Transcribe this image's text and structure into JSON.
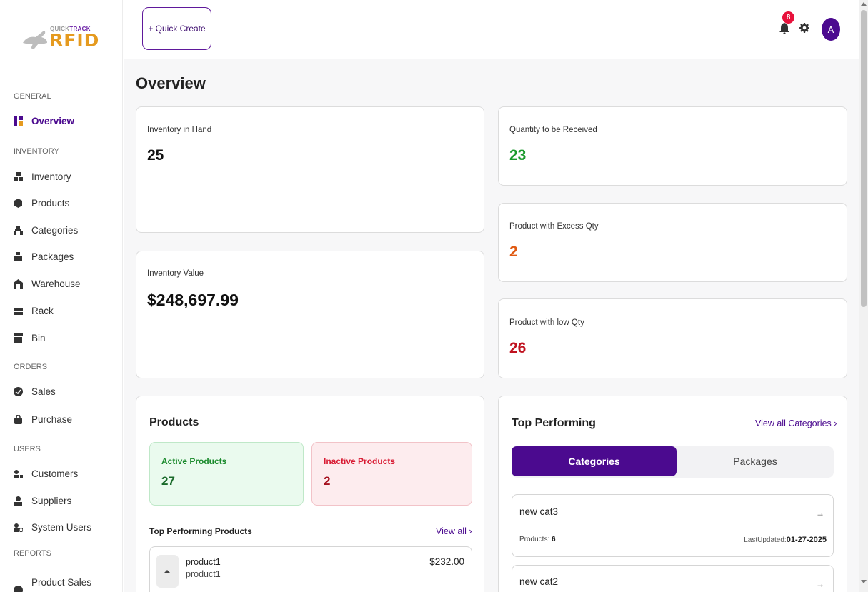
{
  "brand": {
    "small": "QUICK",
    "small_bold": "TRACK",
    "big": "RFID"
  },
  "sidebar": {
    "sections": [
      {
        "label": "GENERAL"
      },
      {
        "label": "INVENTORY"
      },
      {
        "label": "ORDERS"
      },
      {
        "label": "USERS"
      },
      {
        "label": "REPORTS"
      }
    ],
    "items": [
      {
        "label": "Overview",
        "icon": "overview-icon"
      },
      {
        "label": "Inventory",
        "icon": "inventory-icon"
      },
      {
        "label": "Products",
        "icon": "products-icon"
      },
      {
        "label": "Categories",
        "icon": "categories-icon"
      },
      {
        "label": "Packages",
        "icon": "packages-icon"
      },
      {
        "label": "Warehouse",
        "icon": "warehouse-icon"
      },
      {
        "label": "Rack",
        "icon": "rack-icon"
      },
      {
        "label": "Bin",
        "icon": "bin-icon"
      },
      {
        "label": "Sales",
        "icon": "sales-icon"
      },
      {
        "label": "Purchase",
        "icon": "purchase-icon"
      },
      {
        "label": "Customers",
        "icon": "customers-icon"
      },
      {
        "label": "Suppliers",
        "icon": "suppliers-icon"
      },
      {
        "label": "System Users",
        "icon": "system-users-icon"
      },
      {
        "label": "Product Sales",
        "icon": "product-sales-icon"
      }
    ]
  },
  "topbar": {
    "quick_create": "+ Quick Create",
    "notifications": "8",
    "avatar": "A"
  },
  "page": {
    "title": "Overview"
  },
  "stats": {
    "inventory_in_hand": {
      "label": "Inventory in Hand",
      "value": "25"
    },
    "inventory_value": {
      "label": "Inventory Value",
      "value": "$248,697.99"
    },
    "qty_to_receive": {
      "label": "Quantity to be Received",
      "value": "23"
    },
    "excess_qty": {
      "label": "Product with Excess Qty",
      "value": "2"
    },
    "low_qty": {
      "label": "Product with low Qty",
      "value": "26"
    }
  },
  "products_panel": {
    "title": "Products",
    "active": {
      "label": "Active Products",
      "value": "27"
    },
    "inactive": {
      "label": "Inactive Products",
      "value": "2"
    },
    "top_title": "Top Performing Products",
    "view_all": "View all ›",
    "items": [
      {
        "name": "product1",
        "sub": "product1",
        "price": "$232.00"
      }
    ]
  },
  "top_performing": {
    "title": "Top Performing",
    "view_all": "View all Categories ›",
    "tabs": [
      "Categories",
      "Packages"
    ],
    "rows": [
      {
        "name": "new cat3",
        "products_label": "Products:",
        "products": "6",
        "updated_label": "LastUpdated:",
        "updated": "01-27-2025",
        "arrow": "→"
      },
      {
        "name": "new cat2",
        "arrow": "→"
      }
    ]
  },
  "colors": {
    "accent": "#4b0a8f",
    "green": "#1a9a2c",
    "orange": "#e05a12",
    "red": "#c0121f",
    "badge": "#e8113b"
  }
}
